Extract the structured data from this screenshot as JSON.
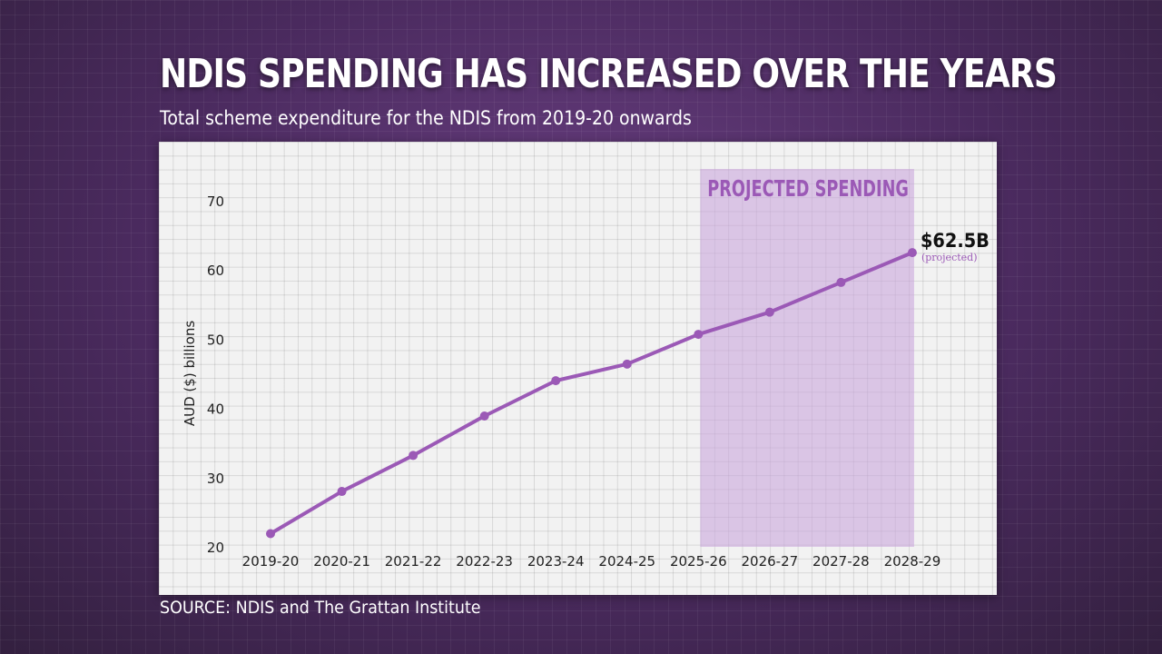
{
  "header": {
    "title": "NDIS SPENDING HAS INCREASED OVER THE YEARS",
    "subtitle": "Total scheme expenditure for the NDIS from 2019-20 onwards"
  },
  "footer": {
    "source": "SOURCE: NDIS and The Grattan Institute"
  },
  "chart_data": {
    "type": "line",
    "title": "NDIS SPENDING HAS INCREASED OVER THE YEARS",
    "subtitle": "Total scheme expenditure for the NDIS from 2019-20 onwards",
    "xlabel": "",
    "ylabel": "AUD ($) billions",
    "categories": [
      "2019-20",
      "2020-21",
      "2021-22",
      "2022-23",
      "2023-24",
      "2024-25",
      "2025-26",
      "2026-27",
      "2027-28",
      "2028-29"
    ],
    "values": [
      21.9,
      28.0,
      33.2,
      38.9,
      44.0,
      46.4,
      50.7,
      53.9,
      58.2,
      62.5
    ],
    "ylim": [
      20,
      70
    ],
    "yticks": [
      20,
      30,
      40,
      50,
      60,
      70
    ],
    "grid": true,
    "legend": "none",
    "line_color": "#9b59b6",
    "projection": {
      "label": "PROJECTED SPENDING",
      "from": "2025-26",
      "to": "2028-29",
      "color": "#c9a6dc"
    },
    "annotation": {
      "value_label": "$62.5B",
      "note": "(projected)",
      "at": "2028-29"
    }
  }
}
